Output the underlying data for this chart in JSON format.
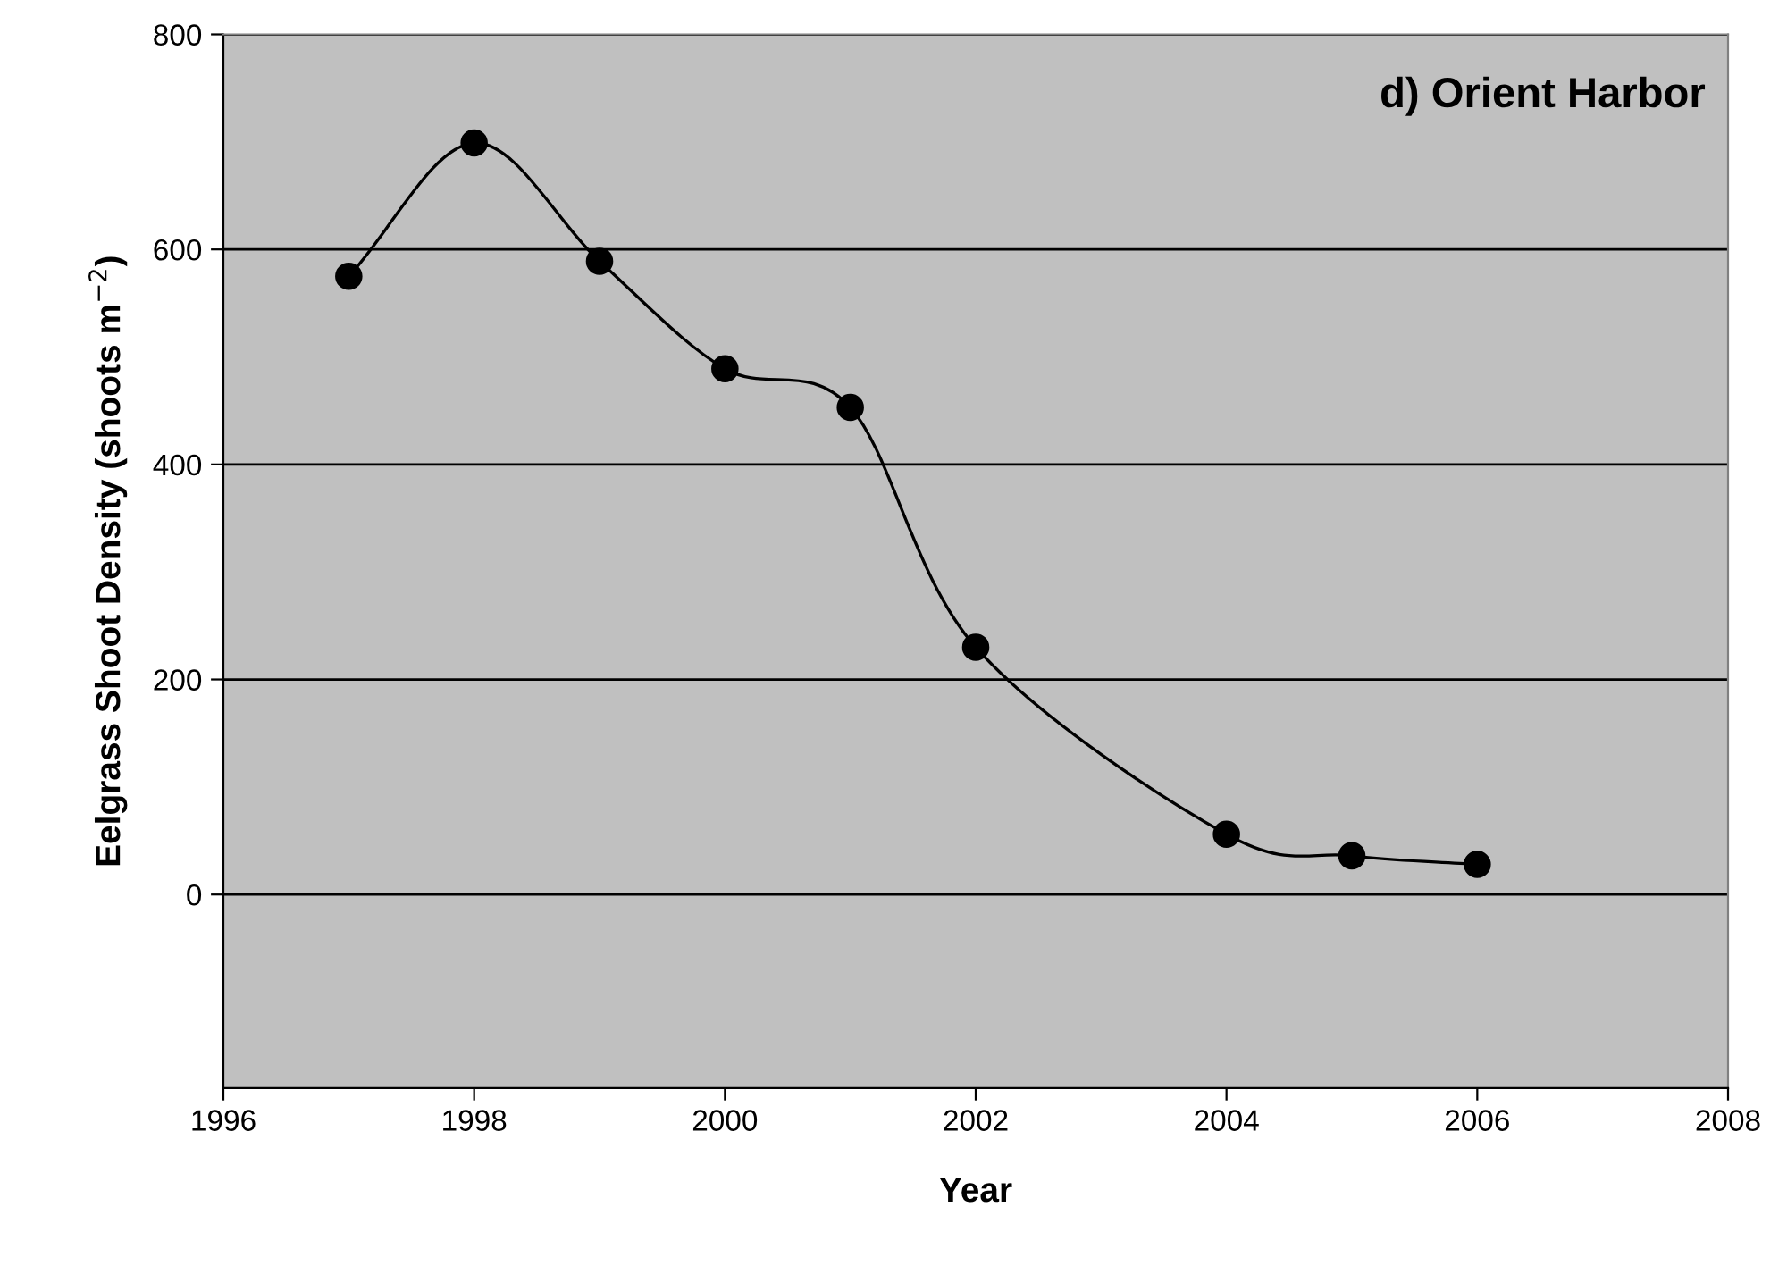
{
  "chart_data": {
    "type": "line",
    "title": "d) Orient Harbor",
    "xlabel": "Year",
    "ylabel": "Eelgrass Shoot Density (shoots m$^{−2}$)",
    "x": [
      1997,
      1998,
      1999,
      2000,
      2001,
      2002,
      2004,
      2005,
      2006
    ],
    "series": [
      {
        "color": "#000000",
        "values": [
          575,
          699,
          589,
          489,
          453,
          230,
          56,
          36,
          28
        ]
      }
    ],
    "xlim": [
      1996,
      2008
    ],
    "xticks": [
      1996,
      1998,
      2000,
      2002,
      2004,
      2006,
      2008
    ],
    "ylim": [
      -180,
      800
    ],
    "yticks": [
      0,
      200,
      400,
      600,
      800
    ],
    "grid": "y",
    "marker": "circle",
    "line_style": "solid"
  }
}
